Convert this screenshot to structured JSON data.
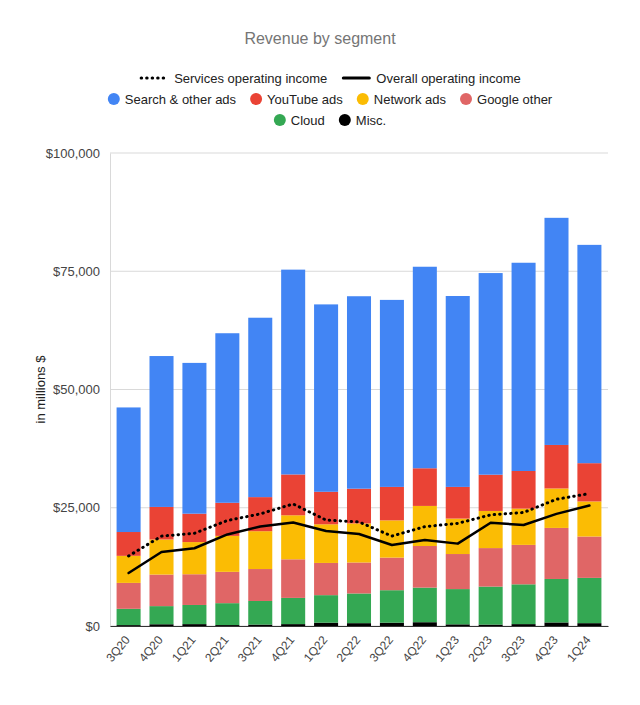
{
  "chart_data": {
    "type": "bar",
    "stacked": true,
    "grid": true,
    "legend": "top",
    "title": "Revenue by segment",
    "y_label": "in millions $",
    "categories": [
      "3Q20",
      "4Q20",
      "1Q21",
      "2Q21",
      "3Q21",
      "4Q21",
      "1Q22",
      "2Q22",
      "3Q22",
      "4Q22",
      "1Q23",
      "2Q23",
      "3Q23",
      "4Q23",
      "1Q24"
    ],
    "ylim": [
      0,
      100000
    ],
    "yticks": [
      {
        "value": 0,
        "label": "$0"
      },
      {
        "value": 25000,
        "label": "$25,000"
      },
      {
        "value": 50000,
        "label": "$50,000"
      },
      {
        "value": 75000,
        "label": "$75,000"
      },
      {
        "value": 100000,
        "label": "$100,000"
      }
    ],
    "series": [
      {
        "name": "Search & other ads",
        "color": "#4285f4",
        "values": [
          26338,
          31903,
          31879,
          35845,
          37926,
          43301,
          39618,
          40689,
          39539,
          42604,
          40359,
          42628,
          44026,
          48020,
          46156
        ]
      },
      {
        "name": "YouTube ads",
        "color": "#ea4335",
        "values": [
          5037,
          6885,
          6005,
          7002,
          7205,
          8633,
          6869,
          7340,
          7071,
          7963,
          6693,
          7665,
          7952,
          9200,
          8090
        ]
      },
      {
        "name": "Network ads",
        "color": "#fbbc04",
        "values": [
          5720,
          7411,
          6800,
          7597,
          7999,
          9305,
          8174,
          8259,
          7872,
          8475,
          7496,
          7850,
          7669,
          8340,
          7413
        ]
      },
      {
        "name": "Google other",
        "color": "#e06666",
        "values": [
          5478,
          6674,
          6494,
          6623,
          6754,
          8161,
          6811,
          6553,
          6895,
          8796,
          7413,
          8142,
          8339,
          10794,
          8746
        ]
      },
      {
        "name": "Cloud",
        "color": "#34a853",
        "values": [
          3444,
          3831,
          4047,
          4628,
          4990,
          5541,
          5821,
          6276,
          6868,
          7315,
          7454,
          8031,
          8411,
          9192,
          9574
        ]
      },
      {
        "name": "Misc.",
        "color": "#000000",
        "values": [
          190,
          370,
          400,
          200,
          300,
          400,
          700,
          600,
          700,
          800,
          350,
          300,
          400,
          750,
          600
        ]
      },
      {
        "name": "Services operating income",
        "type": "line",
        "line_style": "dotted",
        "color": "#000000",
        "values": [
          14800,
          19000,
          19600,
          22300,
          23700,
          25800,
          22400,
          22000,
          19000,
          21000,
          21700,
          23500,
          24000,
          26800,
          28000
        ]
      },
      {
        "name": "Overall operating income",
        "type": "line",
        "line_style": "solid",
        "color": "#000000",
        "values": [
          11213,
          15651,
          16437,
          19361,
          21031,
          21885,
          20094,
          19453,
          17135,
          18160,
          17415,
          21838,
          21343,
          23697,
          25472
        ]
      }
    ]
  }
}
